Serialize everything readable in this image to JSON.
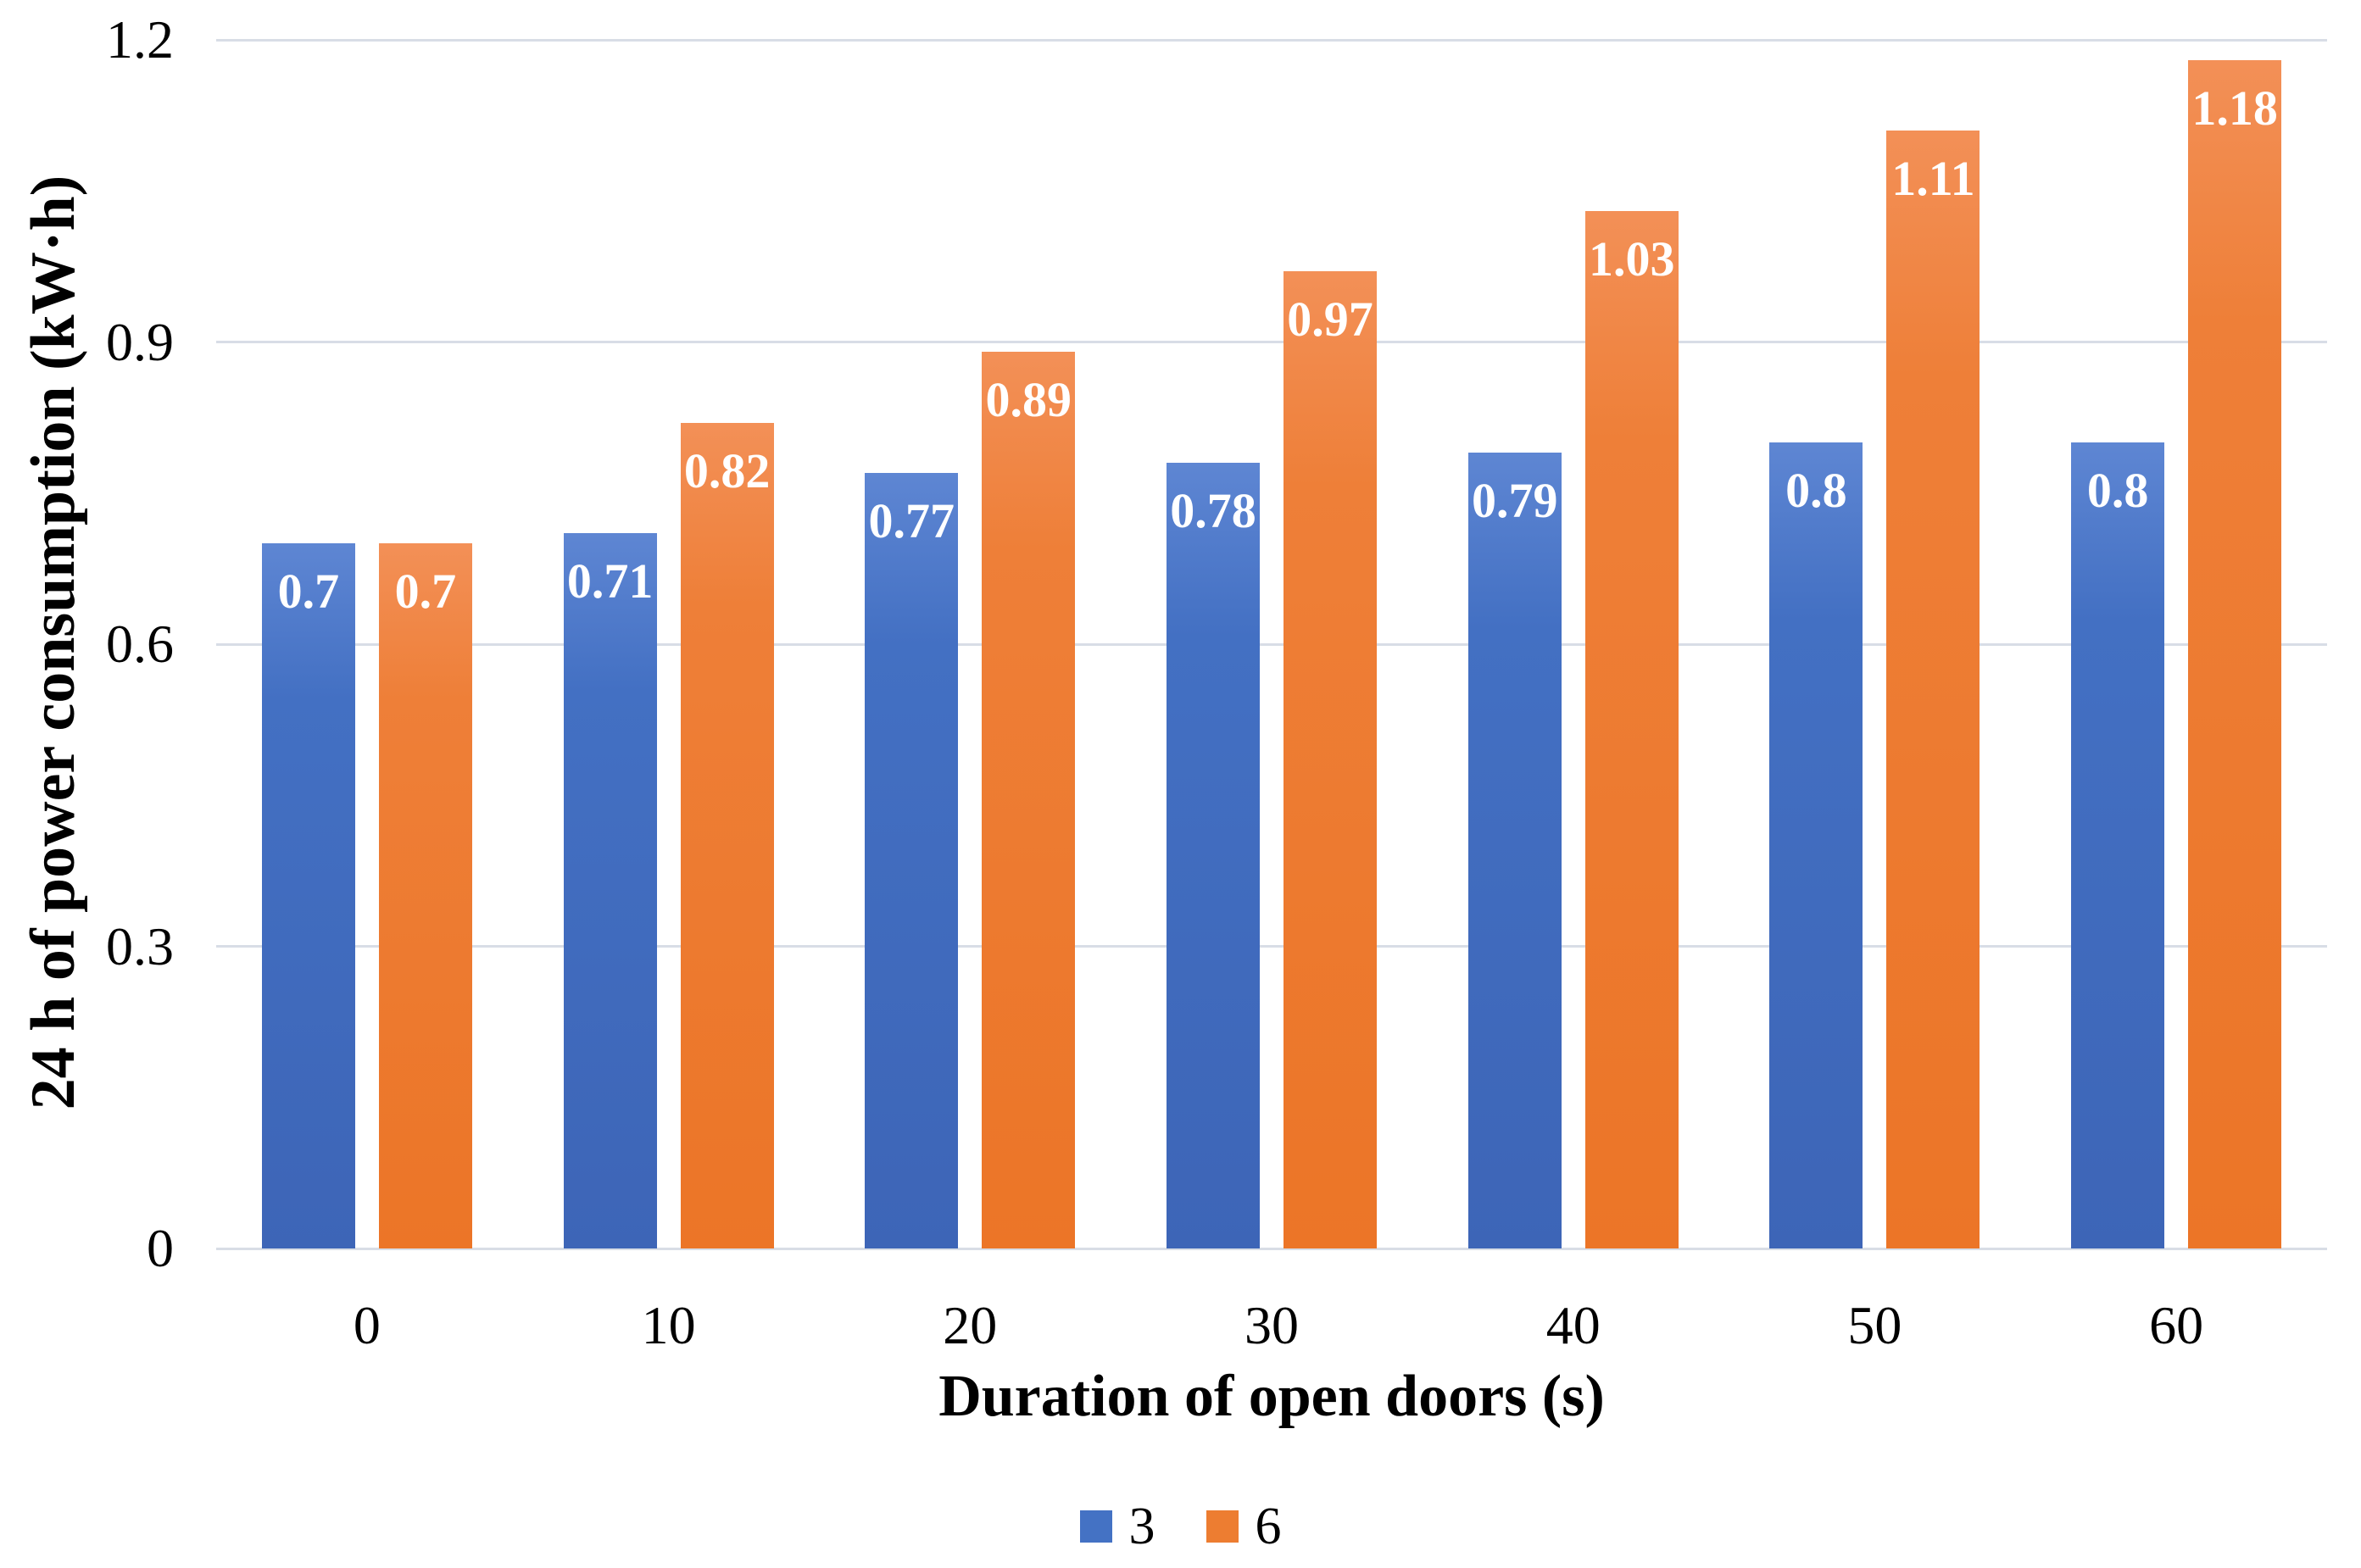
{
  "chart_data": {
    "type": "bar",
    "title": "",
    "xlabel": "Duration of open doors (s)",
    "ylabel": "24 h of power consumption (kW·h)",
    "categories": [
      "0",
      "10",
      "20",
      "30",
      "40",
      "50",
      "60"
    ],
    "series": [
      {
        "name": "3",
        "color": "#4472C4",
        "values": [
          0.7,
          0.71,
          0.77,
          0.78,
          0.79,
          0.8,
          0.8
        ],
        "data_labels": [
          "0.7",
          "0.71",
          "0.77",
          "0.78",
          "0.79",
          "0.8",
          "0.8"
        ]
      },
      {
        "name": "6",
        "color": "#ED7D31",
        "values": [
          0.7,
          0.82,
          0.89,
          0.97,
          1.03,
          1.11,
          1.18
        ],
        "data_labels": [
          "0.7",
          "0.82",
          "0.89",
          "0.97",
          "1.03",
          "1.11",
          "1.18"
        ]
      }
    ],
    "ylim": [
      0,
      1.2
    ],
    "yticks": {
      "values": [
        0,
        0.3,
        0.6,
        0.9,
        1.2
      ],
      "labels": [
        "0",
        "0.3",
        "0.6",
        "0.9",
        "1.2"
      ]
    },
    "grid": true,
    "legend_position": "bottom",
    "colors": {
      "gridline": "#d8dde6",
      "data_label": "#ffffff",
      "series3_gradient": [
        "#5e86d3",
        "#4370c3",
        "#3d65b7"
      ],
      "series6_gradient": [
        "#f39057",
        "#ee7f38",
        "#ec7527"
      ]
    }
  }
}
